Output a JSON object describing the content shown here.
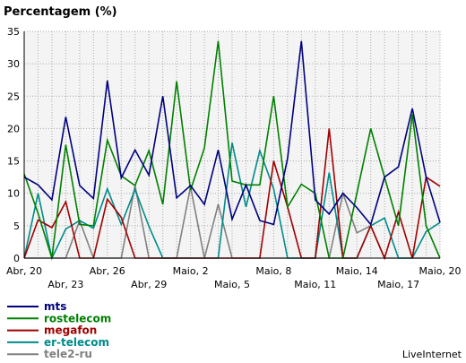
{
  "chart_data": {
    "type": "line",
    "title": "Percentagem (%)",
    "ylim": [
      0,
      35
    ],
    "yticks": [
      0,
      5,
      10,
      15,
      20,
      25,
      30,
      35
    ],
    "grid": true,
    "legend_position": "bottom-left",
    "x_labels_row1": [
      {
        "index": 0,
        "label": "Abr, 20"
      },
      {
        "index": 6,
        "label": "Abr, 26"
      },
      {
        "index": 12,
        "label": "Maio, 2"
      },
      {
        "index": 18,
        "label": "Maio, 8"
      },
      {
        "index": 24,
        "label": "Maio, 14"
      },
      {
        "index": 30,
        "label": "Maio, 20"
      }
    ],
    "x_labels_row2": [
      {
        "index": 3,
        "label": "Abr, 23"
      },
      {
        "index": 9,
        "label": "Abr, 29"
      },
      {
        "index": 15,
        "label": "Maio, 5"
      },
      {
        "index": 21,
        "label": "Maio, 11"
      },
      {
        "index": 27,
        "label": "Maio, 17"
      }
    ],
    "series": [
      {
        "name": "mts",
        "color": "#00007f",
        "values": [
          12.5,
          11.3,
          9.0,
          21.8,
          11.2,
          9.2,
          27.4,
          12.4,
          16.7,
          12.8,
          25.0,
          9.3,
          11.2,
          8.3,
          16.7,
          6.0,
          11.3,
          5.8,
          5.2,
          15.4,
          33.5,
          9.0,
          6.8,
          10.0,
          7.8,
          5.2,
          12.5,
          14.1,
          23.1,
          12.5,
          5.5
        ]
      },
      {
        "name": "rostelecom",
        "color": "#008000",
        "values": [
          13.0,
          6.9,
          0.0,
          17.5,
          5.2,
          5.0,
          18.2,
          12.7,
          11.2,
          16.6,
          8.3,
          27.3,
          10.5,
          17.0,
          33.5,
          11.9,
          11.3,
          11.3,
          25.0,
          7.9,
          11.4,
          10.0,
          0.0,
          0.0,
          10.0,
          20.0,
          12.5,
          5.0,
          22.2,
          5.0,
          0.0
        ]
      },
      {
        "name": "megafon",
        "color": "#a00000",
        "values": [
          0.0,
          5.9,
          4.7,
          8.7,
          0.0,
          0.0,
          9.1,
          6.3,
          0.0,
          0.0,
          0.0,
          0.0,
          0.0,
          0.0,
          0.0,
          0.0,
          0.0,
          0.0,
          15.0,
          7.9,
          0.0,
          0.0,
          20.0,
          0.0,
          0.0,
          5.0,
          0.0,
          7.1,
          0.0,
          12.5,
          11.1
        ]
      },
      {
        "name": "er-telecom",
        "color": "#008b8b",
        "values": [
          0.0,
          10.0,
          0.0,
          4.5,
          5.8,
          4.6,
          10.7,
          5.2,
          10.6,
          4.9,
          0.0,
          0.0,
          0.0,
          0.0,
          0.0,
          17.8,
          7.9,
          16.6,
          10.7,
          0.0,
          0.0,
          0.0,
          13.2,
          0.0,
          0.0,
          5.0,
          6.2,
          0.0,
          0.0,
          4.1,
          5.5
        ]
      },
      {
        "name": "tele2-ru",
        "color": "#808080",
        "values": [
          0.0,
          0.0,
          0.0,
          0.0,
          5.8,
          0.0,
          0.0,
          0.0,
          11.2,
          0.0,
          0.0,
          0.0,
          11.0,
          0.0,
          8.3,
          0.0,
          0.0,
          0.0,
          0.0,
          0.0,
          0.0,
          0.0,
          0.0,
          10.0,
          3.9,
          5.0,
          0.0,
          0.0,
          0.0,
          0.0,
          0.0
        ]
      }
    ]
  },
  "brand": "LiveInternet"
}
